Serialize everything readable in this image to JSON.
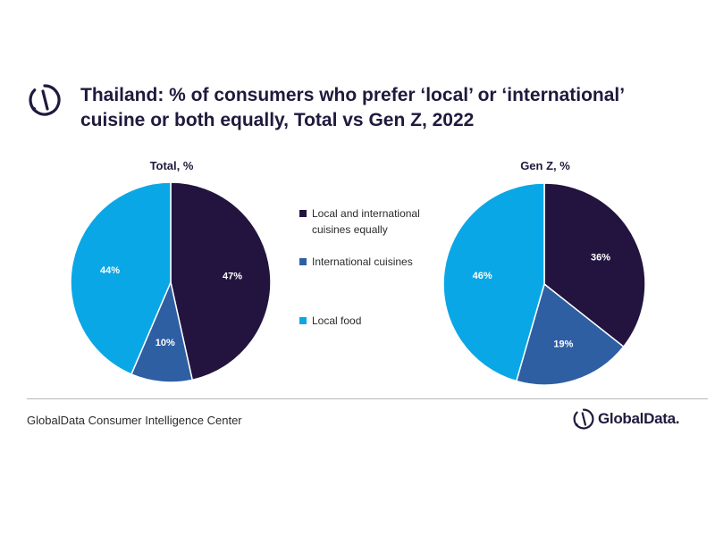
{
  "title": "Thailand: % of consumers who prefer ‘local’ or ‘international’ cuisine or both equally, Total vs Gen Z, 2022",
  "footer": {
    "source": "GlobalData Consumer Intelligence Center",
    "brand": "GlobalData."
  },
  "colors": {
    "local_and_international": "#22143f",
    "international": "#2e5fa3",
    "local_food": "#0aa7e6",
    "text": "#1f1a3d"
  },
  "icons": {
    "logo": "globaldata-logo-icon"
  },
  "chart_data": [
    {
      "type": "pie",
      "title": "Total, %",
      "labels": [
        "Local and international cuisines equally",
        "International cuisines",
        "Local food"
      ],
      "values": [
        47,
        10,
        44
      ],
      "value_labels": [
        "47%",
        "10%",
        "44%"
      ],
      "colors": [
        "#22143f",
        "#2e5fa3",
        "#0aa7e6"
      ]
    },
    {
      "type": "pie",
      "title": "Gen Z, %",
      "labels": [
        "Local and international cuisines equally",
        "International cuisines",
        "Local food"
      ],
      "values": [
        36,
        19,
        46
      ],
      "value_labels": [
        "36%",
        "19%",
        "46%"
      ],
      "colors": [
        "#22143f",
        "#2e5fa3",
        "#0aa7e6"
      ]
    }
  ],
  "legend": {
    "items": [
      {
        "label": "Local and international cuisines equally",
        "color": "#22143f"
      },
      {
        "label": "International cuisines",
        "color": "#2e5fa3"
      },
      {
        "label": "Local food",
        "color": "#0aa7e6"
      }
    ]
  }
}
